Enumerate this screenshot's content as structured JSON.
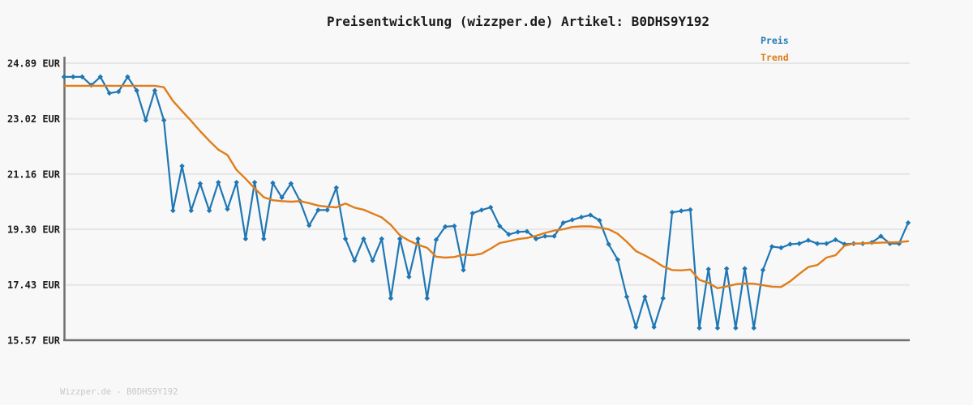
{
  "title": "Preisentwicklung (wizzper.de) Artikel: B0DHS9Y192",
  "footer": "Wizzper.de - B0DHS9Y192",
  "legend": [
    {
      "label": "Preis",
      "color": "#1f77b4"
    },
    {
      "label": "Trend",
      "color": "#e07d1a"
    }
  ],
  "colors": {
    "background": "#f8f8f8",
    "axis": "#6f6f6f",
    "gridline": "#e6e6e6",
    "tick_label": "#1c1c1c",
    "title": "#1c1c1c",
    "footer": "#c8c8c8",
    "preis_line": "#1f77b4",
    "trend_line": "#e07d1a"
  },
  "chart_data": {
    "type": "line",
    "title": "Preisentwicklung (wizzper.de) Artikel: B0DHS9Y192",
    "currency": "EUR",
    "xlabel": "",
    "ylabel": "",
    "ylim": [
      15.57,
      24.89
    ],
    "grid": "horizontal-only",
    "legend_position": "top-right",
    "y_ticks": [
      {
        "label": "24.89 EUR",
        "value": 24.89
      },
      {
        "label": "23.02 EUR",
        "value": 23.02
      },
      {
        "label": "21.16 EUR",
        "value": 21.16
      },
      {
        "label": "19.30 EUR",
        "value": 19.3
      },
      {
        "label": "17.43 EUR",
        "value": 17.43
      },
      {
        "label": "15.57 EUR",
        "value": 15.57
      }
    ],
    "series": [
      {
        "name": "Preis",
        "color": "#1f77b4",
        "markers": true,
        "values": [
          24.43,
          24.43,
          24.43,
          24.15,
          24.43,
          23.88,
          23.93,
          24.43,
          23.97,
          22.97,
          23.97,
          22.97,
          19.93,
          21.43,
          19.93,
          20.84,
          19.93,
          20.88,
          19.98,
          20.88,
          18.98,
          20.88,
          18.98,
          20.86,
          20.37,
          20.84,
          20.25,
          19.43,
          19.95,
          19.95,
          20.7,
          18.98,
          18.25,
          18.98,
          18.25,
          18.98,
          16.98,
          18.98,
          17.7,
          18.98,
          16.98,
          18.95,
          19.39,
          19.41,
          17.93,
          19.84,
          19.95,
          20.04,
          19.41,
          19.13,
          19.21,
          19.23,
          18.98,
          19.07,
          19.07,
          19.52,
          19.62,
          19.71,
          19.78,
          19.6,
          18.8,
          18.28,
          17.03,
          16.01,
          17.03,
          16.01,
          16.98,
          19.87,
          19.92,
          19.96,
          15.98,
          17.96,
          15.98,
          17.98,
          15.98,
          17.98,
          15.98,
          17.93,
          18.72,
          18.68,
          18.8,
          18.82,
          18.93,
          18.82,
          18.82,
          18.95,
          18.8,
          18.82,
          18.82,
          18.86,
          19.07,
          18.82,
          18.82,
          19.52
        ]
      },
      {
        "name": "Trend",
        "color": "#e07d1a",
        "markers": false,
        "values": [
          24.13,
          24.13,
          24.13,
          24.13,
          24.13,
          24.13,
          24.13,
          24.13,
          24.13,
          24.13,
          24.13,
          24.08,
          23.62,
          23.28,
          22.95,
          22.6,
          22.28,
          21.98,
          21.8,
          21.3,
          21.0,
          20.68,
          20.38,
          20.28,
          20.25,
          20.23,
          20.25,
          20.18,
          20.1,
          20.06,
          20.04,
          20.17,
          20.03,
          19.96,
          19.83,
          19.7,
          19.45,
          19.1,
          18.92,
          18.78,
          18.68,
          18.38,
          18.35,
          18.37,
          18.45,
          18.43,
          18.48,
          18.65,
          18.84,
          18.9,
          18.97,
          19.01,
          19.08,
          19.18,
          19.26,
          19.3,
          19.38,
          19.4,
          19.4,
          19.36,
          19.3,
          19.15,
          18.88,
          18.57,
          18.42,
          18.25,
          18.05,
          17.93,
          17.92,
          17.95,
          17.6,
          17.5,
          17.32,
          17.38,
          17.45,
          17.48,
          17.47,
          17.42,
          17.37,
          17.36,
          17.55,
          17.8,
          18.03,
          18.1,
          18.35,
          18.43,
          18.75,
          18.82,
          18.83,
          18.84,
          18.85,
          18.86,
          18.87,
          18.9
        ]
      }
    ]
  }
}
